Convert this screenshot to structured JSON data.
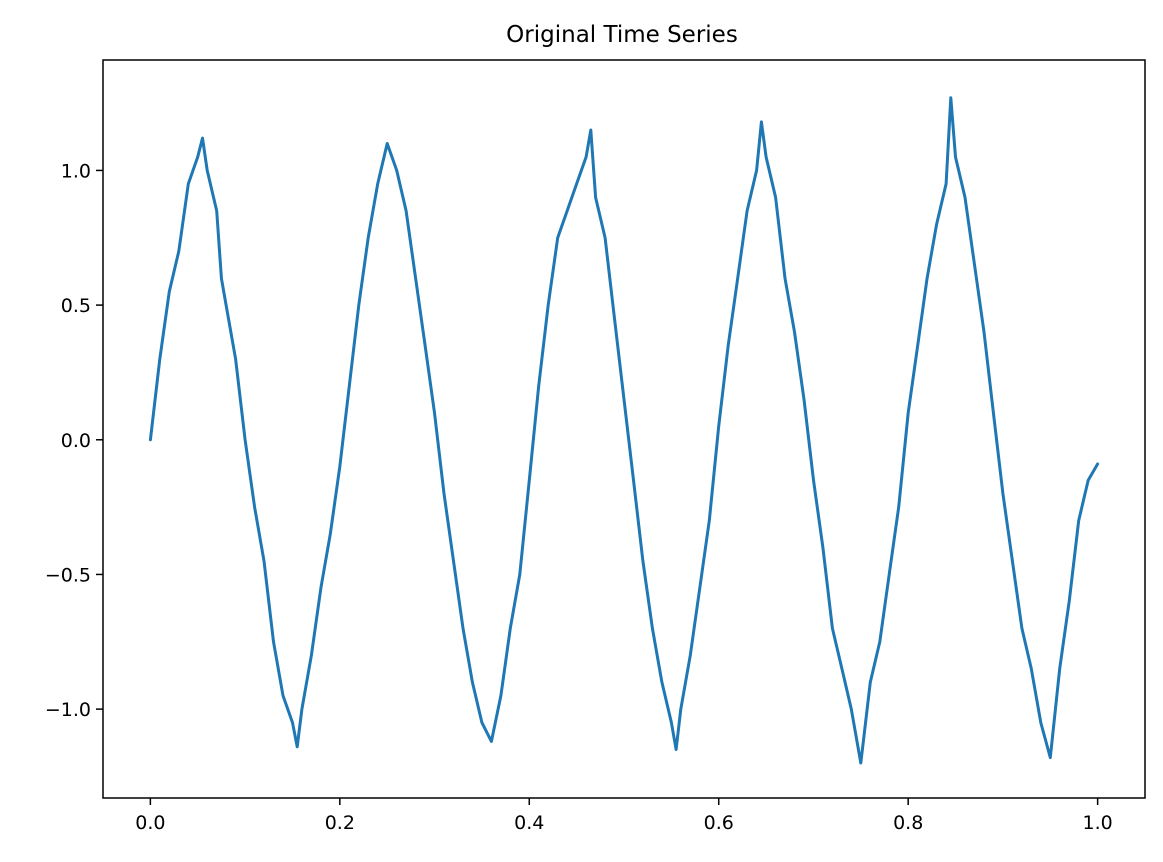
{
  "chart_data": {
    "type": "line",
    "title": "Original Time Series",
    "xlim": [
      -0.05,
      1.05
    ],
    "ylim": [
      -1.33,
      1.41
    ],
    "x_ticks": [
      0.0,
      0.2,
      0.4,
      0.6,
      0.8,
      1.0
    ],
    "x_tick_labels": [
      "0.0",
      "0.2",
      "0.4",
      "0.6",
      "0.8",
      "1.0"
    ],
    "y_ticks": [
      1.0,
      0.5,
      0.0,
      -0.5,
      -1.0
    ],
    "y_tick_labels": [
      "1.0",
      "0.5",
      "0.0",
      "−0.5",
      "−1.0"
    ],
    "grid": false,
    "series": [
      {
        "color": "#1f77b4",
        "x": [
          0.0,
          0.01,
          0.02,
          0.03,
          0.04,
          0.05,
          0.055,
          0.06,
          0.07,
          0.075,
          0.08,
          0.09,
          0.1,
          0.11,
          0.12,
          0.13,
          0.14,
          0.15,
          0.155,
          0.16,
          0.17,
          0.18,
          0.19,
          0.2,
          0.21,
          0.22,
          0.23,
          0.24,
          0.25,
          0.26,
          0.27,
          0.28,
          0.29,
          0.3,
          0.31,
          0.32,
          0.33,
          0.34,
          0.35,
          0.36,
          0.37,
          0.38,
          0.39,
          0.4,
          0.41,
          0.42,
          0.43,
          0.44,
          0.45,
          0.46,
          0.465,
          0.47,
          0.48,
          0.49,
          0.5,
          0.51,
          0.52,
          0.53,
          0.54,
          0.55,
          0.555,
          0.56,
          0.57,
          0.58,
          0.59,
          0.6,
          0.61,
          0.62,
          0.63,
          0.64,
          0.645,
          0.65,
          0.66,
          0.67,
          0.68,
          0.69,
          0.7,
          0.71,
          0.72,
          0.73,
          0.74,
          0.75,
          0.76,
          0.77,
          0.78,
          0.79,
          0.8,
          0.81,
          0.82,
          0.83,
          0.84,
          0.845,
          0.85,
          0.86,
          0.87,
          0.88,
          0.89,
          0.9,
          0.91,
          0.92,
          0.93,
          0.94,
          0.95,
          0.96,
          0.97,
          0.98,
          0.99,
          1.0
        ],
        "values": [
          0.0,
          0.3,
          0.55,
          0.7,
          0.95,
          1.05,
          1.12,
          1.0,
          0.85,
          0.6,
          0.5,
          0.3,
          0.0,
          -0.25,
          -0.45,
          -0.75,
          -0.95,
          -1.05,
          -1.14,
          -1.0,
          -0.8,
          -0.55,
          -0.35,
          -0.1,
          0.2,
          0.5,
          0.75,
          0.95,
          1.1,
          1.0,
          0.85,
          0.6,
          0.35,
          0.1,
          -0.2,
          -0.45,
          -0.7,
          -0.9,
          -1.05,
          -1.12,
          -0.95,
          -0.7,
          -0.5,
          -0.15,
          0.2,
          0.5,
          0.75,
          0.85,
          0.95,
          1.05,
          1.15,
          0.9,
          0.75,
          0.45,
          0.15,
          -0.15,
          -0.45,
          -0.7,
          -0.9,
          -1.05,
          -1.15,
          -1.0,
          -0.8,
          -0.55,
          -0.3,
          0.05,
          0.35,
          0.6,
          0.85,
          1.0,
          1.18,
          1.05,
          0.9,
          0.6,
          0.4,
          0.15,
          -0.15,
          -0.4,
          -0.7,
          -0.85,
          -1.0,
          -1.2,
          -0.9,
          -0.75,
          -0.5,
          -0.25,
          0.1,
          0.35,
          0.6,
          0.8,
          0.95,
          1.27,
          1.05,
          0.9,
          0.65,
          0.4,
          0.1,
          -0.2,
          -0.45,
          -0.7,
          -0.85,
          -1.05,
          -1.18,
          -0.85,
          -0.6,
          -0.3,
          -0.15,
          -0.09
        ]
      }
    ]
  }
}
